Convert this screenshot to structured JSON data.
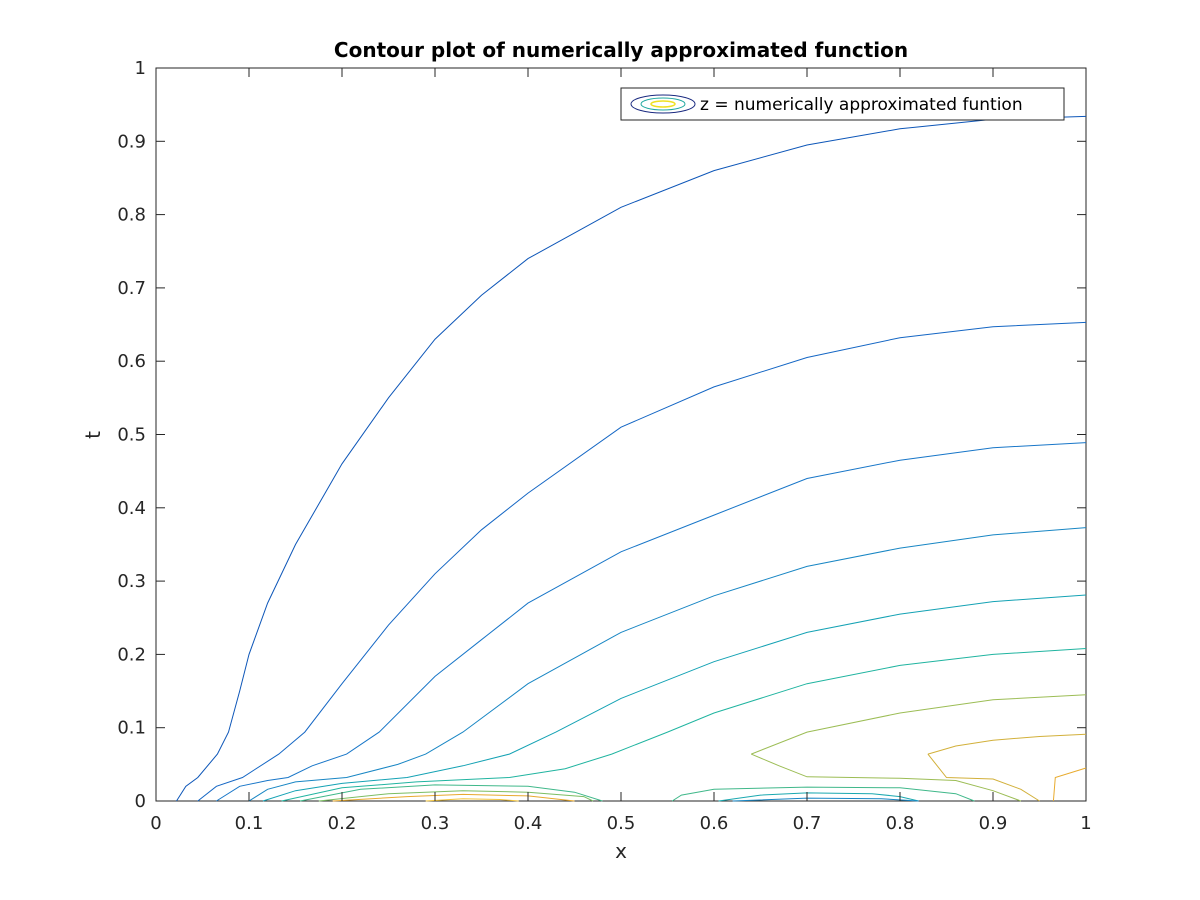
{
  "chart_data": {
    "type": "contour",
    "title": "Contour plot of numerically approximated function",
    "xlabel": "x",
    "ylabel": "t",
    "xlim": [
      0,
      1
    ],
    "ylim": [
      0,
      1
    ],
    "x_ticks": [
      "0",
      "0.1",
      "0.2",
      "0.3",
      "0.4",
      "0.5",
      "0.6",
      "0.7",
      "0.8",
      "0.9",
      "1"
    ],
    "y_ticks": [
      "0",
      "0.1",
      "0.2",
      "0.3",
      "0.4",
      "0.5",
      "0.6",
      "0.7",
      "0.8",
      "0.9",
      "1"
    ],
    "grid": false,
    "box": true,
    "legend": {
      "position": "top-right",
      "entries": [
        "z = numerically approximated funtion"
      ]
    },
    "colormap": [
      "#0a3c9c",
      "#1060c8",
      "#1a7ec8",
      "#16a0b4",
      "#22b49c",
      "#5ebc78",
      "#9cbd55",
      "#c8b23c",
      "#e8ab2e",
      "#f5c63a"
    ],
    "contours": [
      {
        "color": "#0d56b8",
        "points": [
          [
            0.022,
            0.0
          ],
          [
            0.032,
            0.02
          ],
          [
            0.045,
            0.032
          ],
          [
            0.066,
            0.064
          ],
          [
            0.078,
            0.094
          ],
          [
            0.09,
            0.15
          ],
          [
            0.1,
            0.2
          ],
          [
            0.12,
            0.27
          ],
          [
            0.15,
            0.35
          ],
          [
            0.2,
            0.46
          ],
          [
            0.25,
            0.55
          ],
          [
            0.3,
            0.63
          ],
          [
            0.35,
            0.69
          ],
          [
            0.4,
            0.74
          ],
          [
            0.5,
            0.81
          ],
          [
            0.6,
            0.86
          ],
          [
            0.7,
            0.895
          ],
          [
            0.8,
            0.917
          ],
          [
            0.9,
            0.93
          ],
          [
            1.0,
            0.934
          ]
        ]
      },
      {
        "color": "#1466c4",
        "points": [
          [
            0.045,
            0.0
          ],
          [
            0.065,
            0.02
          ],
          [
            0.093,
            0.032
          ],
          [
            0.132,
            0.064
          ],
          [
            0.16,
            0.094
          ],
          [
            0.2,
            0.16
          ],
          [
            0.25,
            0.24
          ],
          [
            0.3,
            0.31
          ],
          [
            0.35,
            0.37
          ],
          [
            0.4,
            0.42
          ],
          [
            0.5,
            0.51
          ],
          [
            0.6,
            0.565
          ],
          [
            0.7,
            0.605
          ],
          [
            0.8,
            0.632
          ],
          [
            0.9,
            0.647
          ],
          [
            1.0,
            0.653
          ]
        ]
      },
      {
        "color": "#1876c8",
        "points": [
          [
            0.065,
            0.0
          ],
          [
            0.09,
            0.02
          ],
          [
            0.12,
            0.028
          ],
          [
            0.142,
            0.032
          ],
          [
            0.168,
            0.048
          ],
          [
            0.205,
            0.064
          ],
          [
            0.24,
            0.094
          ],
          [
            0.3,
            0.17
          ],
          [
            0.35,
            0.22
          ],
          [
            0.4,
            0.27
          ],
          [
            0.5,
            0.34
          ],
          [
            0.6,
            0.39
          ],
          [
            0.7,
            0.44
          ],
          [
            0.8,
            0.465
          ],
          [
            0.9,
            0.482
          ],
          [
            1.0,
            0.489
          ]
        ]
      },
      {
        "color": "#1886c4",
        "points": [
          [
            0.1,
            0.0
          ],
          [
            0.12,
            0.016
          ],
          [
            0.15,
            0.026
          ],
          [
            0.205,
            0.032
          ],
          [
            0.26,
            0.05
          ],
          [
            0.29,
            0.064
          ],
          [
            0.33,
            0.094
          ],
          [
            0.4,
            0.16
          ],
          [
            0.5,
            0.23
          ],
          [
            0.6,
            0.28
          ],
          [
            0.7,
            0.32
          ],
          [
            0.8,
            0.345
          ],
          [
            0.9,
            0.363
          ],
          [
            1.0,
            0.373
          ]
        ]
      },
      {
        "color": "#14a2b4",
        "points": [
          [
            0.115,
            0.0
          ],
          [
            0.15,
            0.014
          ],
          [
            0.2,
            0.024
          ],
          [
            0.27,
            0.032
          ],
          [
            0.33,
            0.048
          ],
          [
            0.38,
            0.064
          ],
          [
            0.43,
            0.094
          ],
          [
            0.5,
            0.14
          ],
          [
            0.6,
            0.19
          ],
          [
            0.7,
            0.23
          ],
          [
            0.8,
            0.255
          ],
          [
            0.9,
            0.272
          ],
          [
            1.0,
            0.281
          ]
        ]
      },
      {
        "color": "#20b4a0",
        "points": [
          [
            0.135,
            0.0
          ],
          [
            0.2,
            0.018
          ],
          [
            0.28,
            0.026
          ],
          [
            0.38,
            0.032
          ],
          [
            0.44,
            0.044
          ],
          [
            0.49,
            0.064
          ],
          [
            0.55,
            0.094
          ],
          [
            0.6,
            0.12
          ],
          [
            0.7,
            0.16
          ],
          [
            0.8,
            0.185
          ],
          [
            0.9,
            0.2
          ],
          [
            1.0,
            0.208
          ]
        ]
      },
      {
        "color": "#40b88a",
        "points": [
          [
            0.155,
            0.0
          ],
          [
            0.22,
            0.016
          ],
          [
            0.3,
            0.022
          ],
          [
            0.4,
            0.02
          ],
          [
            0.45,
            0.012
          ],
          [
            0.48,
            0.0
          ]
        ]
      },
      {
        "color": "#7cbd62",
        "points": [
          [
            0.175,
            0.0
          ],
          [
            0.25,
            0.01
          ],
          [
            0.33,
            0.014
          ],
          [
            0.4,
            0.012
          ],
          [
            0.46,
            0.006
          ],
          [
            0.47,
            0.0
          ]
        ]
      },
      {
        "color": "#e8a92e",
        "points": [
          [
            0.19,
            0.0
          ],
          [
            0.27,
            0.006
          ],
          [
            0.33,
            0.009
          ],
          [
            0.4,
            0.007
          ],
          [
            0.45,
            0.0
          ]
        ]
      },
      {
        "color": "#f2c43c",
        "points": [
          [
            0.29,
            0.0
          ],
          [
            0.33,
            0.003
          ],
          [
            0.37,
            0.002
          ],
          [
            0.39,
            0.0
          ]
        ]
      },
      {
        "color": "#9cbd55",
        "points": [
          [
            0.64,
            0.064
          ],
          [
            0.7,
            0.094
          ],
          [
            0.8,
            0.12
          ],
          [
            0.9,
            0.138
          ],
          [
            1.0,
            0.145
          ]
        ]
      },
      {
        "color": "#9cbd55",
        "points": [
          [
            0.64,
            0.064
          ],
          [
            0.67,
            0.048
          ],
          [
            0.7,
            0.033
          ],
          [
            0.8,
            0.031
          ],
          [
            0.86,
            0.028
          ],
          [
            0.9,
            0.014
          ],
          [
            0.93,
            0.0
          ]
        ]
      },
      {
        "color": "#d2b03a",
        "points": [
          [
            0.83,
            0.064
          ],
          [
            0.86,
            0.075
          ],
          [
            0.9,
            0.083
          ],
          [
            0.95,
            0.088
          ],
          [
            1.0,
            0.091
          ]
        ]
      },
      {
        "color": "#d2b03a",
        "points": [
          [
            0.83,
            0.064
          ],
          [
            0.85,
            0.032
          ],
          [
            0.9,
            0.03
          ],
          [
            0.93,
            0.016
          ],
          [
            0.95,
            0.0
          ]
        ]
      },
      {
        "color": "#e8ab2e",
        "points": [
          [
            0.965,
            0.0
          ],
          [
            0.967,
            0.032
          ],
          [
            1.0,
            0.045
          ]
        ]
      },
      {
        "color": "#40b88a",
        "points": [
          [
            0.555,
            0.0
          ],
          [
            0.565,
            0.008
          ],
          [
            0.6,
            0.016
          ],
          [
            0.7,
            0.019
          ],
          [
            0.8,
            0.018
          ],
          [
            0.86,
            0.01
          ],
          [
            0.88,
            0.0
          ]
        ]
      },
      {
        "color": "#1aa8b0",
        "points": [
          [
            0.605,
            0.0
          ],
          [
            0.65,
            0.008
          ],
          [
            0.7,
            0.011
          ],
          [
            0.77,
            0.01
          ],
          [
            0.8,
            0.006
          ],
          [
            0.82,
            0.0
          ]
        ]
      },
      {
        "color": "#1886c4",
        "points": [
          [
            0.62,
            0.0
          ],
          [
            0.7,
            0.004
          ],
          [
            0.78,
            0.003
          ],
          [
            0.82,
            0.0
          ]
        ]
      }
    ]
  }
}
